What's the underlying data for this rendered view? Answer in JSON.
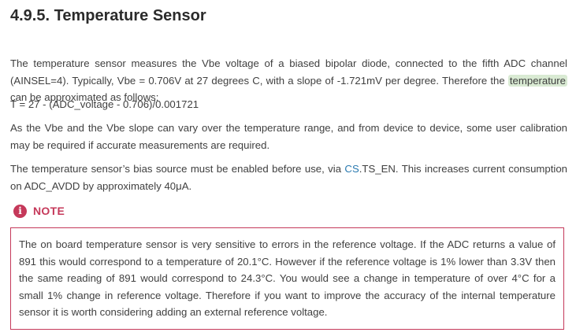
{
  "section": {
    "title": "4.9.5. Temperature Sensor"
  },
  "paragraphs": {
    "p1_before": "The temperature sensor measures the Vbe voltage of a biased bipolar diode, connected to the fifth ADC channel (AINSEL=4). Typically, Vbe = 0.706V at 27 degrees C, with a slope of -1.721mV per degree. Therefore the ",
    "p1_highlight": "temperature",
    "p1_after": " can be approximated as follows:",
    "formula": "T = 27 - (ADC_voltage - 0.706)/0.001721",
    "p3": "As the Vbe and the Vbe slope can vary over the temperature range, and from device to device, some user calibration may be required if accurate measurements are required.",
    "p4_before": "The temperature sensor’s bias source must be enabled before use, via ",
    "p4_link": "CS",
    "p4_after": ".TS_EN. This increases current consumption on ADC_AVDD by approximately 40μA."
  },
  "note": {
    "icon": "info-icon",
    "icon_glyph": "i",
    "label": "NOTE",
    "text": "The on board temperature sensor is very sensitive to errors in the reference voltage. If the ADC returns a value of 891 this would correspond to a temperature of 20.1°C. However if the reference voltage is 1% lower than 3.3V then the same reading of 891 would correspond to 24.3°C. You would see a change in temperature of over 4°C for a small 1% change in reference voltage. Therefore if you want to improve the accuracy of the internal temperature sensor it is worth considering adding an external reference voltage.",
    "accent_color": "#c5395a"
  },
  "colors": {
    "highlight": "#d9ead3",
    "link": "#2a7ab0"
  }
}
